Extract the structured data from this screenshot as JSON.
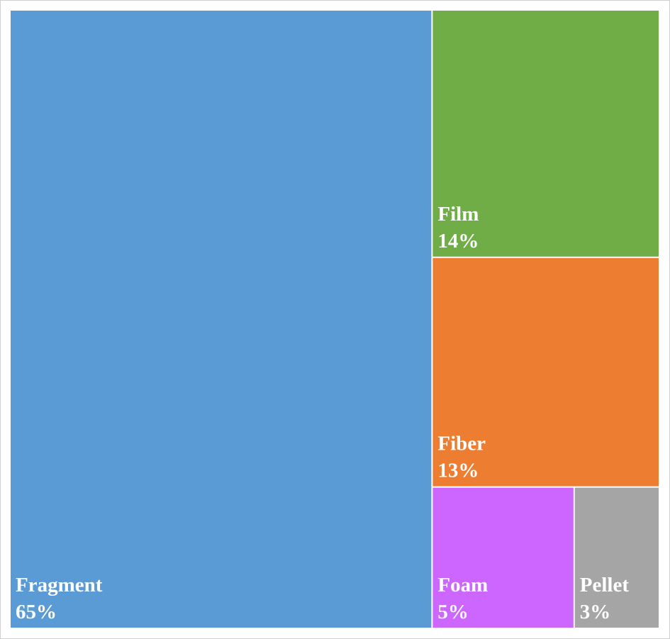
{
  "chart_data": {
    "type": "treemap",
    "categories": [
      "Fragment",
      "Film",
      "Fiber",
      "Foam",
      "Pellet"
    ],
    "values": [
      65,
      14,
      13,
      5,
      3
    ],
    "value_labels": [
      "65%",
      "14%",
      "13%",
      "5%",
      "3%"
    ],
    "colors": [
      "#5b9bd5",
      "#70ad47",
      "#ed7d31",
      "#cc66ff",
      "#a5a5a5"
    ]
  }
}
